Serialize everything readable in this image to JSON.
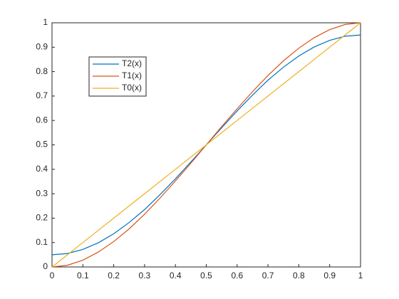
{
  "chart_data": {
    "type": "line",
    "x": [
      0,
      0.05,
      0.1,
      0.15,
      0.2,
      0.25,
      0.3,
      0.35,
      0.4,
      0.45,
      0.5,
      0.55,
      0.6,
      0.65,
      0.7,
      0.75,
      0.8,
      0.85,
      0.9,
      0.95,
      1
    ],
    "series": [
      {
        "name": "T2(x)",
        "color": "#0072bd",
        "values": [
          0.05,
          0.055,
          0.072,
          0.099,
          0.136,
          0.182,
          0.235,
          0.296,
          0.361,
          0.43,
          0.5,
          0.57,
          0.639,
          0.704,
          0.765,
          0.818,
          0.864,
          0.901,
          0.928,
          0.945,
          0.95
        ]
      },
      {
        "name": "T1(x)",
        "color": "#d95319",
        "values": [
          0,
          0.007,
          0.028,
          0.061,
          0.104,
          0.156,
          0.216,
          0.282,
          0.352,
          0.425,
          0.5,
          0.575,
          0.648,
          0.718,
          0.784,
          0.844,
          0.896,
          0.939,
          0.972,
          0.993,
          1
        ]
      },
      {
        "name": "T0(x)",
        "color": "#edb120",
        "values": [
          0,
          0.05,
          0.1,
          0.15,
          0.2,
          0.25,
          0.3,
          0.35,
          0.4,
          0.45,
          0.5,
          0.55,
          0.6,
          0.65,
          0.7,
          0.75,
          0.8,
          0.85,
          0.9,
          0.95,
          1
        ]
      }
    ],
    "xlim": [
      0,
      1
    ],
    "xticks": [
      0,
      0.1,
      0.2,
      0.3,
      0.4,
      0.5,
      0.6,
      0.7,
      0.8,
      0.9,
      1
    ],
    "ylim": [
      0,
      1
    ],
    "yticks": [
      0,
      0.1,
      0.2,
      0.3,
      0.4,
      0.5,
      0.6,
      0.7,
      0.8,
      0.9,
      1
    ],
    "legend": "upper-left"
  }
}
